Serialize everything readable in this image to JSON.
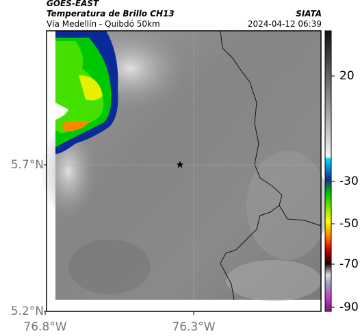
{
  "header": {
    "title": "GOES-EAST",
    "subtitle": "Temperatura de Brillo CH13",
    "location": "Vía Medellín - Quibdó 50km",
    "source": "SIATA",
    "datetime": "2024-04-12 06:39"
  },
  "axes": {
    "lat_ticks": [
      "5.7°N",
      "5.2°N"
    ],
    "lon_ticks": [
      "76.8°W",
      "76.3°W"
    ]
  },
  "colorbar": {
    "ticks": [
      20,
      -30,
      -50,
      -70,
      -90
    ]
  }
}
